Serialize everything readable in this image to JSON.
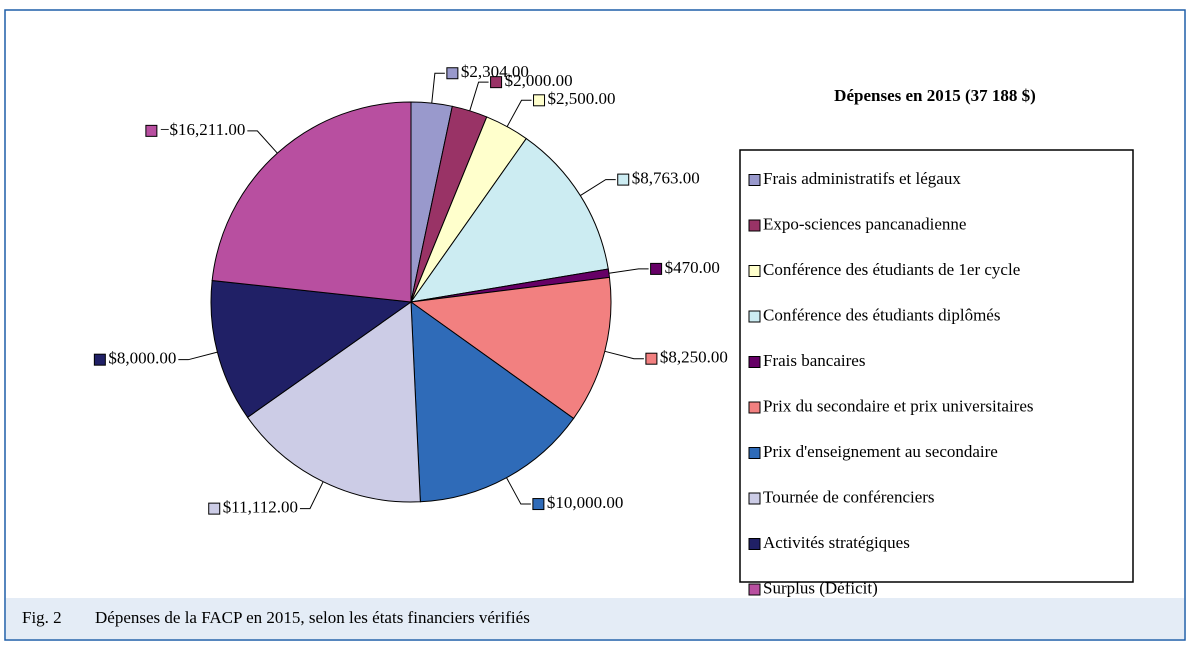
{
  "chart_data": {
    "type": "pie",
    "legend_title": "Dépenses en 2015 (37 188 $)",
    "categories": [
      "Frais administratifs et légaux",
      "Expo-sciences pancanadienne",
      "Conférence des étudiants de 1er cycle",
      "Conférence des étudiants diplômés",
      "Frais bancaires",
      "Prix du secondaire et prix universitaires",
      "Prix d'enseignement au secondaire",
      "Tournée de conférenciers",
      "Activités stratégiques",
      "Surplus (Déficit)"
    ],
    "values": [
      2304,
      2000,
      2500,
      8763,
      470,
      8250,
      10000,
      11112,
      8000,
      -16211
    ],
    "value_labels": [
      "$2,304.00",
      "$2,000.00",
      "$2,500.00",
      "$8,763.00",
      "$470.00",
      "$8,250.00",
      "$10,000.00",
      "$11,112.00",
      "$8,000.00",
      "−$16,211.00"
    ],
    "colors": [
      "#9999cc",
      "#993366",
      "#ffffcc",
      "#ccecf2",
      "#660066",
      "#f28080",
      "#2f6bb8",
      "#ccccE6",
      "#202066",
      "#b84fa0"
    ],
    "legend": "right"
  },
  "caption": {
    "label": "Fig. 2",
    "text": "Dépenses de la FACP en 2015, selon les états financiers vérifiés"
  }
}
